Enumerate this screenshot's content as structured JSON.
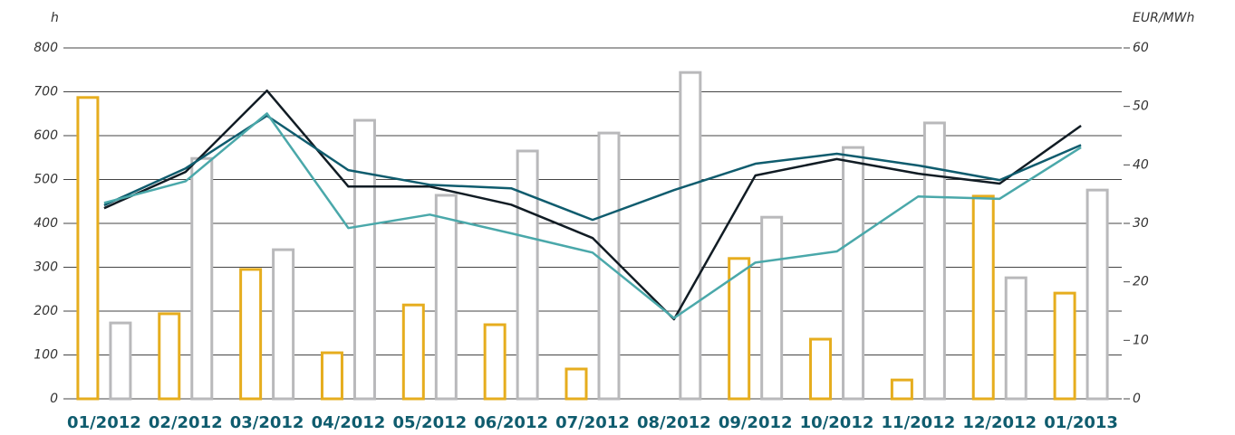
{
  "chart_data": {
    "type": "combo",
    "y_label": "h",
    "y2_label": "EUR/MWh",
    "categories": [
      "01/2012",
      "02/2012",
      "03/2012",
      "04/2012",
      "05/2012",
      "06/2012",
      "07/2012",
      "08/2012",
      "09/2012",
      "10/2012",
      "11/2012",
      "12/2012",
      "01/2013"
    ],
    "series": [
      {
        "type": "bar",
        "color": "#e6ad1e",
        "values": [
          687,
          194,
          295,
          105,
          214,
          169,
          68,
          null,
          320,
          136,
          43,
          462,
          241
        ]
      },
      {
        "type": "bar",
        "color": "#b9b9bb",
        "values": [
          173,
          548,
          340,
          635,
          464,
          565,
          606,
          744,
          414,
          573,
          629,
          276,
          476
        ]
      },
      {
        "type": "line",
        "axis": "y2",
        "color": "#111c24",
        "values": [
          32.6,
          38.8,
          52.7,
          36.3,
          36.3,
          33.2,
          27.5,
          13.6,
          38.2,
          41,
          38.5,
          36.8,
          46.7
        ]
      },
      {
        "type": "line",
        "axis": "y2",
        "color": "#0f5c6e",
        "values": [
          33.1,
          39.4,
          48.4,
          39.1,
          36.6,
          36,
          30.6,
          35.7,
          40.2,
          41.9,
          39.9,
          37.4,
          43.4
        ]
      },
      {
        "type": "line",
        "axis": "y2",
        "color": "#4aa8aa",
        "values": [
          33.5,
          37.2,
          48.8,
          29.2,
          31.5,
          28.3,
          25,
          13.8,
          23.3,
          25.2,
          34.6,
          34.2,
          43
        ]
      }
    ],
    "ylim": [
      0,
      800
    ],
    "yticks": [
      0,
      100,
      200,
      300,
      400,
      500,
      600,
      700,
      800
    ],
    "y2lim": [
      0,
      60
    ],
    "y2ticks": [
      0,
      10,
      20,
      30,
      40,
      50,
      60
    ],
    "grid": true
  }
}
